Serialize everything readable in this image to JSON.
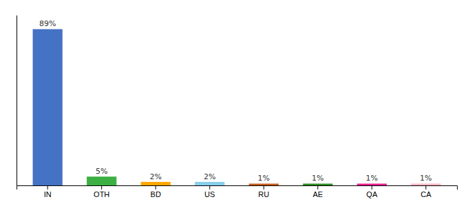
{
  "chart_data": {
    "type": "bar",
    "categories": [
      "IN",
      "OTH",
      "BD",
      "US",
      "RU",
      "AE",
      "QA",
      "CA"
    ],
    "values": [
      89,
      5,
      2,
      2,
      1,
      1,
      1,
      1
    ],
    "value_labels": [
      "89%",
      "5%",
      "2%",
      "2%",
      "1%",
      "1%",
      "1%",
      "1%"
    ],
    "colors": [
      "#4472C4",
      "#3CB043",
      "#FFA500",
      "#87CEEB",
      "#C65A17",
      "#2E8B22",
      "#E91E8C",
      "#FFB6C1"
    ],
    "ylim": [
      0,
      97
    ],
    "yticks": [],
    "data_labels": true,
    "tick_labels": "x"
  }
}
